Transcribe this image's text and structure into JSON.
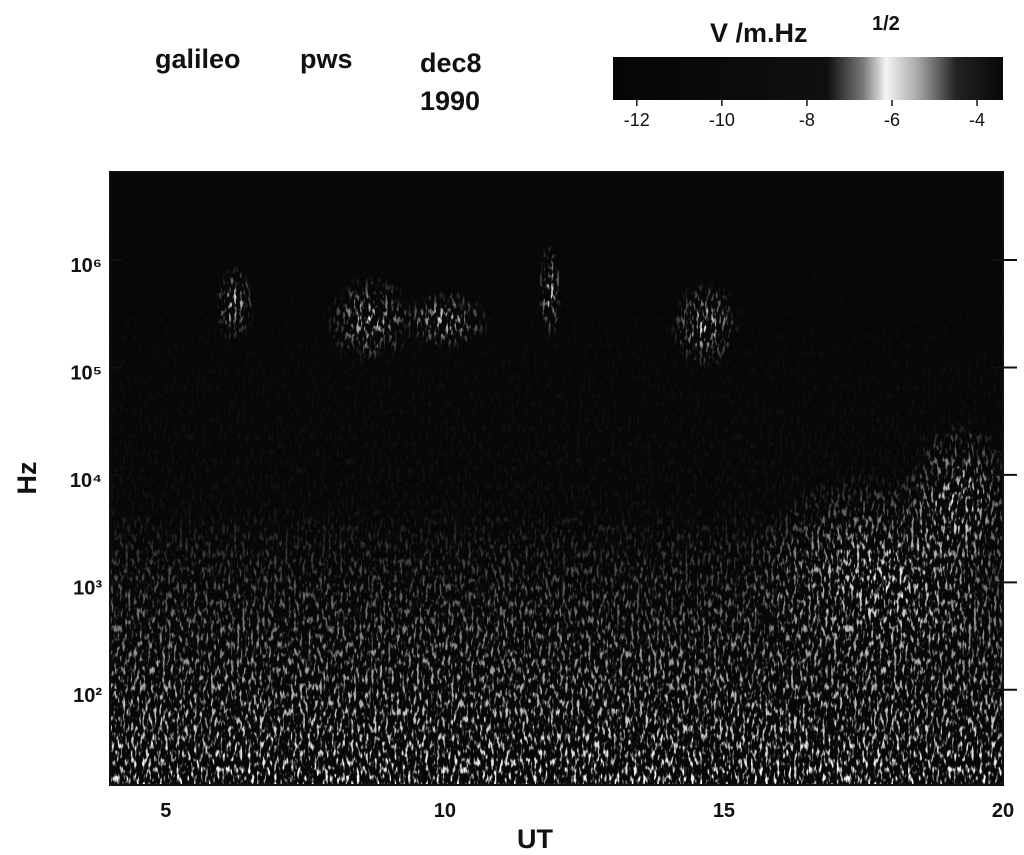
{
  "chart_data": {
    "type": "spectrogram",
    "title_parts": [
      "galileo",
      "pws",
      "dec8",
      "1990"
    ],
    "xlabel": "UT",
    "ylabel": "Hz",
    "xlim": [
      4,
      20
    ],
    "xticks": [
      5,
      10,
      15,
      20
    ],
    "yscale": "log",
    "ylim": [
      13,
      6600000
    ],
    "yticks": [
      {
        "value": 100,
        "label": "10²"
      },
      {
        "value": 1000,
        "label": "10³"
      },
      {
        "value": 10000,
        "label": "10⁴"
      },
      {
        "value": 100000,
        "label": "10⁵"
      },
      {
        "value": 1000000,
        "label": "10⁶"
      }
    ],
    "colorbar": {
      "label": "V /m.Hz",
      "label_exponent": "1/2",
      "clim": [
        -12.56,
        -3.39
      ],
      "ticks": [
        -12,
        -10,
        -8,
        -6,
        -4
      ]
    }
  }
}
